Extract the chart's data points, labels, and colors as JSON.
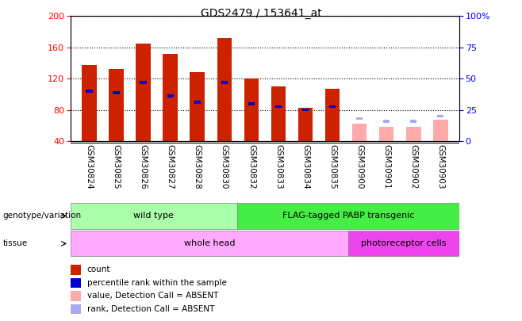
{
  "title": "GDS2479 / 153641_at",
  "samples": [
    "GSM30824",
    "GSM30825",
    "GSM30826",
    "GSM30827",
    "GSM30828",
    "GSM30830",
    "GSM30832",
    "GSM30833",
    "GSM30834",
    "GSM30835",
    "GSM30900",
    "GSM30901",
    "GSM30902",
    "GSM30903"
  ],
  "count_values": [
    137,
    132,
    165,
    152,
    128,
    172,
    120,
    110,
    83,
    107,
    null,
    null,
    null,
    null
  ],
  "rank_values": [
    104,
    102,
    115,
    98,
    90,
    115,
    88,
    84,
    80,
    84,
    null,
    null,
    null,
    null
  ],
  "absent_count_values": [
    null,
    null,
    null,
    null,
    null,
    null,
    null,
    null,
    null,
    null,
    62,
    58,
    58,
    68
  ],
  "absent_rank_values": [
    null,
    null,
    null,
    null,
    null,
    null,
    null,
    null,
    null,
    null,
    18,
    16,
    16,
    20
  ],
  "ylim_left": [
    40,
    200
  ],
  "ylim_right": [
    0,
    100
  ],
  "yticks_left": [
    40,
    80,
    120,
    160,
    200
  ],
  "yticks_right": [
    0,
    25,
    50,
    75,
    100
  ],
  "bar_color_present": "#cc2200",
  "bar_color_absent": "#ffaaaa",
  "rank_color_present": "#0000cc",
  "rank_color_absent": "#aaaaee",
  "genotype_wild_label": "wild type",
  "genotype_wild_color": "#aaffaa",
  "genotype_flag_label": "FLAG-tagged PABP transgenic",
  "genotype_flag_color": "#44ee44",
  "tissue_whole_label": "whole head",
  "tissue_whole_color": "#ffaaff",
  "tissue_photo_label": "photoreceptor cells",
  "tissue_photo_color": "#ee44ee",
  "legend_items": [
    {
      "label": "count",
      "color": "#cc2200"
    },
    {
      "label": "percentile rank within the sample",
      "color": "#0000cc"
    },
    {
      "label": "value, Detection Call = ABSENT",
      "color": "#ffaaaa"
    },
    {
      "label": "rank, Detection Call = ABSENT",
      "color": "#aaaaee"
    }
  ],
  "bar_width": 0.55,
  "rank_bar_width": 0.25
}
